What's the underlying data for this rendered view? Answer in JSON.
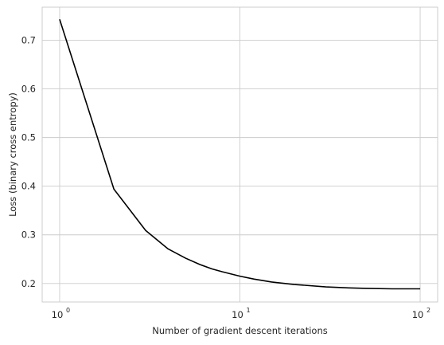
{
  "chart_data": {
    "type": "line",
    "title": "",
    "xlabel": "Number of gradient descent iterations",
    "ylabel": "Loss (binary cross entropy)",
    "xscale": "log",
    "xlim": [
      0.8,
      125
    ],
    "ylim": [
      0.162,
      0.768
    ],
    "xticks": [
      {
        "value": 1,
        "base": "10",
        "exp": "0"
      },
      {
        "value": 10,
        "base": "10",
        "exp": "1"
      },
      {
        "value": 100,
        "base": "10",
        "exp": "2"
      }
    ],
    "yticks": [
      0.2,
      0.3,
      0.4,
      0.5,
      0.6,
      0.7
    ],
    "ytick_labels": [
      "0.2",
      "0.3",
      "0.4",
      "0.5",
      "0.6",
      "0.7"
    ],
    "grid": true,
    "legend": "none",
    "series": [
      {
        "color": "#000000",
        "x": [
          1,
          2,
          3,
          4,
          5,
          6,
          7,
          8,
          10,
          12,
          15,
          20,
          30,
          40,
          50,
          70,
          100
        ],
        "y": [
          0.743,
          0.394,
          0.309,
          0.271,
          0.252,
          0.239,
          0.23,
          0.224,
          0.215,
          0.209,
          0.203,
          0.198,
          0.193,
          0.191,
          0.19,
          0.189,
          0.189
        ]
      }
    ]
  }
}
